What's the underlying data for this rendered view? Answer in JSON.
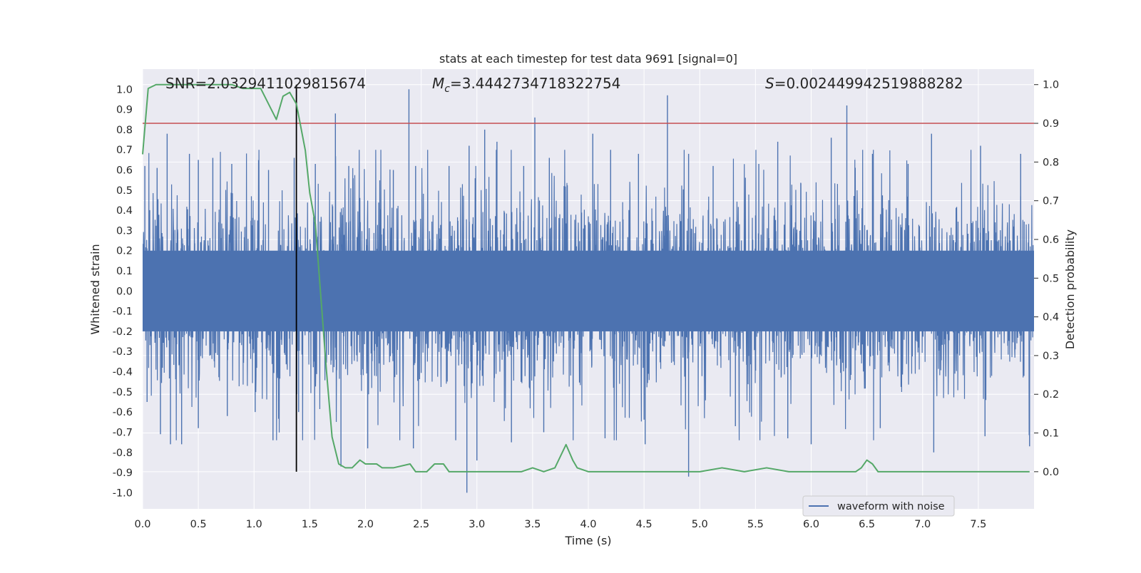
{
  "chart_data": {
    "type": "line",
    "title": "stats at each timestep for test data 9691 [signal=0]",
    "xlabel": "Time (s)",
    "ylabel_left": "Whitened strain",
    "ylabel_right": "Detection probability",
    "xlim": [
      0.0,
      8.0
    ],
    "ylim_left": [
      -1.08,
      1.1
    ],
    "ylim_right": [
      -0.096,
      1.04
    ],
    "x_ticks": [
      "0.0",
      "0.5",
      "1.0",
      "1.5",
      "2.0",
      "2.5",
      "3.0",
      "3.5",
      "4.0",
      "4.5",
      "5.0",
      "5.5",
      "6.0",
      "6.5",
      "7.0",
      "7.5"
    ],
    "y_ticks_left": [
      "1.0",
      "0.9",
      "0.8",
      "0.7",
      "0.6",
      "0.5",
      "0.4",
      "0.3",
      "0.2",
      "0.1",
      "0.0",
      "-0.1",
      "-0.2",
      "-0.3",
      "-0.4",
      "-0.5",
      "-0.6",
      "-0.7",
      "-0.8",
      "-0.9",
      "-1.0"
    ],
    "y_ticks_right": [
      "1.0",
      "0.9",
      "0.8",
      "0.7",
      "0.6",
      "0.5",
      "0.4",
      "0.3",
      "0.2",
      "0.1",
      "0.0"
    ],
    "annotations": {
      "snr": "SNR=2.0329411029815674",
      "mc": "=3.4442734718322754",
      "s": "=0.002449942519888282"
    },
    "threshold_right": 0.9,
    "marker_time": 1.38,
    "waveform": {
      "name": "waveform with noise",
      "color": "#4c72b0",
      "n": 4000,
      "seed": 9691,
      "band": 0.22,
      "pos_spikes": [
        [
          0.02,
          0.62
        ],
        [
          0.13,
          0.61
        ],
        [
          0.22,
          0.78
        ],
        [
          0.42,
          0.68
        ],
        [
          0.5,
          0.65
        ],
        [
          0.63,
          0.66
        ],
        [
          0.8,
          0.63
        ],
        [
          1.13,
          0.6
        ],
        [
          1.36,
          0.66
        ],
        [
          1.55,
          0.63
        ],
        [
          1.73,
          0.88
        ],
        [
          1.85,
          0.62
        ],
        [
          2.25,
          0.6
        ],
        [
          2.39,
          1.0
        ],
        [
          2.45,
          0.62
        ],
        [
          2.75,
          0.62
        ],
        [
          2.93,
          0.72
        ],
        [
          3.07,
          0.8
        ],
        [
          3.18,
          0.74
        ],
        [
          3.42,
          0.62
        ],
        [
          3.52,
          0.86
        ],
        [
          3.65,
          0.66
        ],
        [
          4.04,
          0.78
        ],
        [
          4.2,
          0.7
        ],
        [
          4.45,
          0.68
        ],
        [
          4.71,
          0.97
        ],
        [
          4.9,
          0.68
        ],
        [
          5.12,
          0.62
        ],
        [
          5.53,
          0.63
        ],
        [
          5.7,
          0.74
        ],
        [
          6.18,
          0.76
        ],
        [
          6.32,
          0.92
        ],
        [
          6.55,
          0.68
        ],
        [
          6.87,
          0.63
        ],
        [
          7.08,
          0.78
        ],
        [
          7.52,
          0.72
        ],
        [
          7.88,
          0.68
        ]
      ],
      "neg_spikes": [
        [
          0.04,
          -0.55
        ],
        [
          0.16,
          -0.71
        ],
        [
          0.25,
          -0.76
        ],
        [
          0.35,
          -0.76
        ],
        [
          0.5,
          -0.68
        ],
        [
          0.76,
          -0.62
        ],
        [
          1.01,
          -0.6
        ],
        [
          1.17,
          -0.74
        ],
        [
          1.4,
          -0.6
        ],
        [
          1.78,
          -0.87
        ],
        [
          2.02,
          -0.78
        ],
        [
          2.43,
          -0.78
        ],
        [
          2.81,
          -0.74
        ],
        [
          2.91,
          -1.0
        ],
        [
          3.0,
          -0.84
        ],
        [
          3.31,
          -0.75
        ],
        [
          3.6,
          -0.7
        ],
        [
          4.15,
          -0.73
        ],
        [
          4.51,
          -0.76
        ],
        [
          4.9,
          -0.92
        ],
        [
          5.32,
          -0.67
        ],
        [
          5.79,
          -0.73
        ],
        [
          6.0,
          -0.76
        ],
        [
          6.62,
          -0.68
        ],
        [
          7.1,
          -0.8
        ],
        [
          7.56,
          -0.72
        ],
        [
          7.96,
          -0.77
        ]
      ]
    },
    "probability": {
      "color": "#55a868",
      "x": [
        0.0,
        0.05,
        0.12,
        0.2,
        0.4,
        0.7,
        0.8,
        0.9,
        1.0,
        1.06,
        1.2,
        1.26,
        1.32,
        1.38,
        1.42,
        1.46,
        1.5,
        1.55,
        1.6,
        1.65,
        1.7,
        1.76,
        1.82,
        1.88,
        1.95,
        2.0,
        2.05,
        2.1,
        2.15,
        2.25,
        2.4,
        2.45,
        2.55,
        2.62,
        2.7,
        2.75,
        2.8,
        2.9,
        3.0,
        3.1,
        3.2,
        3.3,
        3.4,
        3.5,
        3.6,
        3.7,
        3.75,
        3.8,
        3.86,
        3.9,
        4.0,
        4.1,
        4.2,
        4.4,
        4.6,
        4.8,
        5.0,
        5.2,
        5.4,
        5.6,
        5.8,
        6.0,
        6.2,
        6.4,
        6.45,
        6.5,
        6.55,
        6.6,
        6.8,
        7.0,
        7.2,
        7.4,
        7.6,
        7.8,
        7.96
      ],
      "y": [
        0.82,
        0.99,
        1.0,
        1.0,
        1.0,
        1.0,
        1.0,
        0.99,
        0.99,
        0.99,
        0.91,
        0.97,
        0.98,
        0.95,
        0.89,
        0.83,
        0.72,
        0.64,
        0.45,
        0.26,
        0.09,
        0.02,
        0.01,
        0.01,
        0.03,
        0.02,
        0.02,
        0.02,
        0.01,
        0.01,
        0.02,
        0.0,
        0.0,
        0.02,
        0.02,
        0.0,
        0.0,
        0.0,
        0.0,
        0.0,
        0.0,
        0.0,
        0.0,
        0.01,
        0.0,
        0.01,
        0.04,
        0.07,
        0.03,
        0.01,
        0.0,
        0.0,
        0.0,
        0.0,
        0.0,
        0.0,
        0.0,
        0.01,
        0.0,
        0.01,
        0.0,
        0.0,
        0.0,
        0.0,
        0.01,
        0.03,
        0.02,
        0.0,
        0.0,
        0.0,
        0.0,
        0.0,
        0.0,
        0.0,
        0.0
      ]
    },
    "legend": {
      "label": "waveform with noise",
      "position": "lower-right"
    },
    "colors": {
      "background": "#eaeaf2",
      "grid": "#ffffff",
      "threshold": "#c44e52",
      "marker": "#000000"
    }
  }
}
